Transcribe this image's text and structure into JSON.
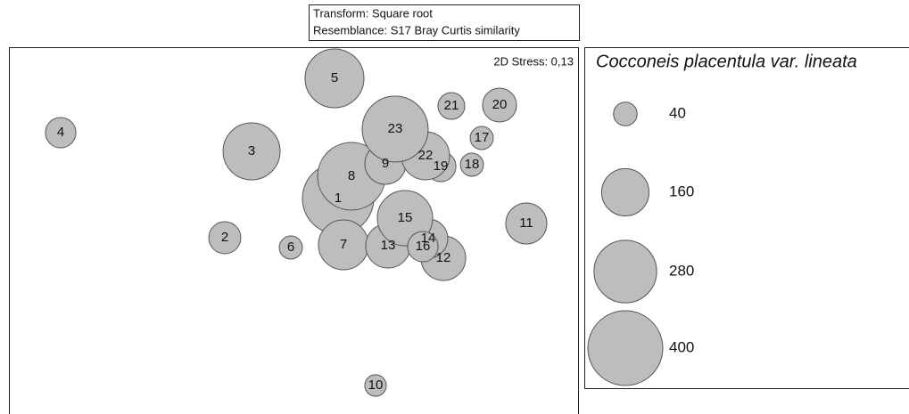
{
  "chart_data": {
    "type": "bubble",
    "header": [
      "Transform: Square root",
      "Resemblance: S17 Bray Curtis similarity"
    ],
    "stress": "2D Stress: 0,13",
    "legend_title": "Cocconeis placentula var. lineata",
    "legend_sizes": [
      40,
      160,
      280,
      400
    ],
    "color": "#bdbdbd",
    "xlim": [
      -1.6,
      1.59
    ],
    "ylim": [
      -1.075,
      0.985
    ],
    "labels": [
      "1",
      "2",
      "3",
      "4",
      "5",
      "6",
      "7",
      "8",
      "9",
      "10",
      "11",
      "12",
      "13",
      "14",
      "15",
      "16",
      "17",
      "18",
      "19",
      "20",
      "21",
      "22",
      "23"
    ],
    "x": [
      0.245,
      -0.39,
      -0.24,
      -1.31,
      0.225,
      -0.02,
      0.275,
      0.32,
      0.51,
      0.455,
      1.3,
      0.835,
      0.525,
      0.75,
      0.62,
      0.72,
      1.05,
      0.995,
      0.82,
      1.15,
      0.88,
      0.735,
      0.565
    ],
    "y": [
      0.135,
      -0.085,
      0.4,
      0.505,
      0.81,
      -0.14,
      -0.125,
      0.26,
      0.33,
      -0.915,
      -0.005,
      -0.2,
      -0.13,
      -0.09,
      0.025,
      -0.135,
      0.475,
      0.325,
      0.315,
      0.66,
      0.655,
      0.375,
      0.525
    ],
    "sizes": [
      363,
      73,
      232,
      66,
      247,
      38,
      178,
      327,
      120,
      33,
      120,
      142,
      142,
      110,
      218,
      66,
      38,
      38,
      66,
      82,
      51,
      165,
      310
    ]
  }
}
